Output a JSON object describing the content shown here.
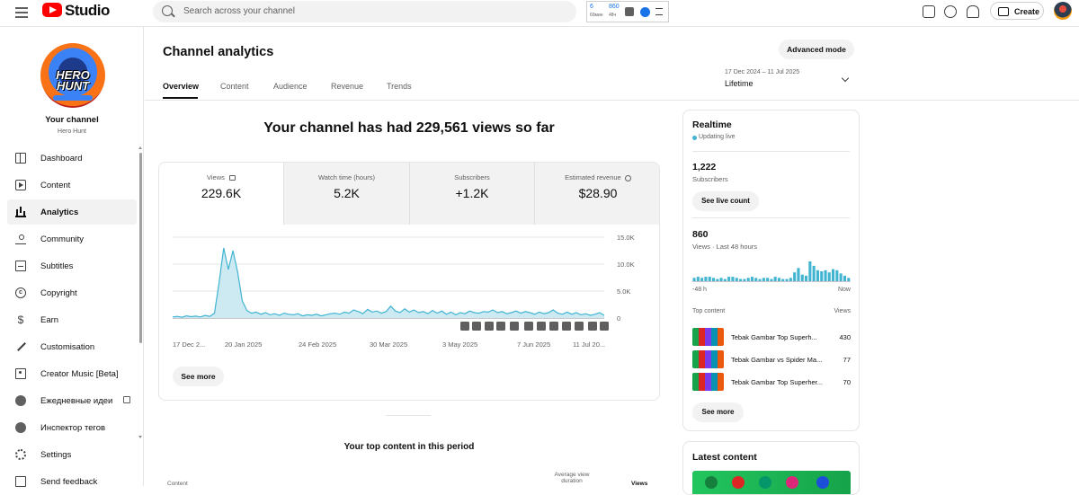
{
  "topbar": {
    "logo_text": "Studio",
    "search_placeholder": "Search across your channel",
    "ext_a": "6",
    "ext_a_sub": "60мин",
    "ext_b": "860",
    "ext_b_sub": "48ч",
    "create_label": "Create"
  },
  "sidebar": {
    "channel_label": "Your channel",
    "channel_name": "Hero Hunt",
    "avatar_text_1": "HERO",
    "avatar_text_2": "HUNT",
    "items": [
      {
        "label": "Dashboard",
        "icon": "dashboard-icon"
      },
      {
        "label": "Content",
        "icon": "content-icon"
      },
      {
        "label": "Analytics",
        "icon": "analytics-icon",
        "active": true
      },
      {
        "label": "Community",
        "icon": "community-icon"
      },
      {
        "label": "Subtitles",
        "icon": "subtitles-icon"
      },
      {
        "label": "Copyright",
        "icon": "copyright-icon"
      },
      {
        "label": "Earn",
        "icon": "earn-icon"
      },
      {
        "label": "Customisation",
        "icon": "customisation-icon"
      },
      {
        "label": "Creator Music [Beta]",
        "icon": "creator-music-icon"
      },
      {
        "label": "Ежедневные идеи",
        "icon": "daily-ideas-icon"
      },
      {
        "label": "Инспектор тегов",
        "icon": "tag-inspector-icon"
      },
      {
        "label": "Settings",
        "icon": "settings-icon"
      },
      {
        "label": "Send feedback",
        "icon": "feedback-icon"
      }
    ]
  },
  "main": {
    "title": "Channel analytics",
    "advanced_mode": "Advanced mode",
    "tabs": [
      "Overview",
      "Content",
      "Audience",
      "Revenue",
      "Trends"
    ],
    "date_range": "17 Dec 2024 – 11 Jul 2025",
    "date_label": "Lifetime",
    "headline": "Your channel has had 229,561 views so far",
    "metrics": [
      {
        "label": "Views",
        "value": "229.6K"
      },
      {
        "label": "Watch time (hours)",
        "value": "5.2K"
      },
      {
        "label": "Subscribers",
        "value": "+1.2K"
      },
      {
        "label": "Estimated revenue",
        "value": "$28.90"
      }
    ],
    "see_more": "See more",
    "top_content_title": "Your top content in this period",
    "top_content_headers": {
      "content": "Content",
      "avg_view": "Average view duration",
      "views": "Views"
    }
  },
  "chart_data": {
    "type": "line",
    "x_tick_labels": [
      "17 Dec 2...",
      "20 Jan 2025",
      "24 Feb 2025",
      "30 Mar 2025",
      "3 May 2025",
      "7 Jun 2025",
      "11 Jul 20..."
    ],
    "y_tick_labels": [
      "15.0K",
      "10.0K",
      "5.0K",
      "0"
    ],
    "ylim": [
      0,
      15000
    ],
    "grid": true,
    "values": [
      200,
      300,
      150,
      400,
      250,
      350,
      200,
      500,
      300,
      900,
      6500,
      13000,
      9000,
      12500,
      8500,
      3200,
      1400,
      900,
      1100,
      700,
      1000,
      600,
      800,
      500,
      900,
      700,
      600,
      800,
      400,
      600,
      500,
      700,
      400,
      600,
      800,
      900,
      700,
      1100,
      900,
      1500,
      1200,
      800,
      1600,
      1100,
      1300,
      900,
      1200,
      2200,
      1300,
      1000,
      1700,
      1100,
      1500,
      1000,
      1200,
      800,
      1400,
      900,
      1300,
      700,
      1100,
      600,
      1000,
      800,
      1300,
      1000,
      900,
      1200,
      1100,
      1500,
      1000,
      1200,
      800,
      1000,
      1300,
      900,
      1200,
      1000,
      700,
      1100,
      800,
      1000,
      1500,
      900,
      700,
      1100,
      700,
      1000,
      600,
      800,
      500,
      700,
      1000,
      500
    ]
  },
  "realtime": {
    "title": "Realtime",
    "status": "Updating live",
    "subscribers": "1,222",
    "subscribers_label": "Subscribers",
    "see_live": "See live count",
    "views": "860",
    "views_label": "Views · Last 48 hours",
    "axis_left": "-48 h",
    "axis_right": "Now",
    "top_content_label": "Top content",
    "views_col": "Views",
    "bars": [
      3,
      4,
      3,
      4,
      4,
      3,
      2,
      3,
      2,
      4,
      4,
      3,
      2,
      2,
      3,
      4,
      3,
      2,
      3,
      3,
      2,
      4,
      3,
      2,
      2,
      3,
      8,
      12,
      6,
      5,
      18,
      14,
      10,
      9,
      10,
      8,
      11,
      10,
      7,
      5,
      3
    ],
    "rows": [
      {
        "title": "Tebak Gambar Top Superh...",
        "views": "430"
      },
      {
        "title": "Tebak Gambar vs Spider Ma...",
        "views": "77"
      },
      {
        "title": "Tebak Gambar Top Superher...",
        "views": "70"
      }
    ],
    "see_more": "See more"
  },
  "latest": {
    "title": "Latest content"
  },
  "colors": {
    "chart_line": "#41b4d2",
    "chart_fill": "#cdeaf3",
    "brand": "#ff0000"
  }
}
